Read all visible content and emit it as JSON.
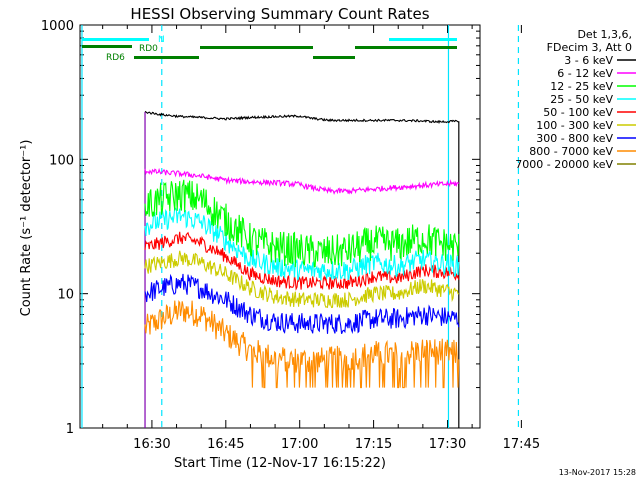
{
  "chart_data": {
    "type": "line",
    "title": "HESSI Observing Summary Count Rates",
    "xlabel": "Start Time (12-Nov-17 16:15:22)",
    "ylabel": "Count Rate (s⁻¹ detector⁻¹)",
    "yscale": "log",
    "ylim": [
      1,
      1000
    ],
    "xlim_min": [
      15.4,
      96.6
    ],
    "x_tick_labels": [
      "16:30",
      "16:45",
      "17:00",
      "17:15",
      "17:30",
      "17:45"
    ],
    "x_tick_min": [
      30,
      45,
      60,
      75,
      90,
      105
    ],
    "y_tick_labels": [
      "1",
      "10",
      "100",
      "1000"
    ],
    "y_tick_values": [
      1,
      10,
      100,
      1000
    ],
    "grid": false,
    "legend_position": "right",
    "legend_header": [
      "Det 1,3,6,",
      "FDecim 3, Att 0"
    ],
    "data_start_min": 28.6,
    "data_end_min": 92.3,
    "series": [
      {
        "name": "3 - 6 keV",
        "color": "#000000",
        "x": [
          28.6,
          32,
          36,
          40,
          45,
          50,
          55,
          60,
          62,
          66,
          70,
          75,
          80,
          85,
          88,
          92.3
        ],
        "values": [
          225,
          215,
          208,
          205,
          200,
          205,
          208,
          210,
          203,
          195,
          195,
          195,
          195,
          193,
          190,
          192
        ]
      },
      {
        "name": "6 - 12 keV",
        "color": "#ff00ff",
        "x": [
          28.6,
          32,
          36,
          40,
          45,
          50,
          55,
          60,
          62,
          66,
          70,
          75,
          80,
          85,
          88,
          92.3
        ],
        "values": [
          82,
          80,
          78,
          75,
          70,
          68,
          67,
          65,
          62,
          58,
          58,
          60,
          62,
          64,
          65,
          66
        ]
      },
      {
        "name": "12 - 25 keV",
        "color": "#00ff00",
        "x": [
          28.6,
          32,
          36,
          40,
          45,
          50,
          55,
          60,
          65,
          70,
          75,
          80,
          85,
          88,
          92.3
        ],
        "values": [
          45,
          50,
          55,
          50,
          35,
          25,
          22,
          21,
          20,
          21,
          24,
          23,
          26,
          24,
          22
        ]
      },
      {
        "name": "25 - 50 keV",
        "color": "#00ffff",
        "x": [
          28.6,
          32,
          36,
          40,
          45,
          50,
          55,
          60,
          65,
          70,
          75,
          80,
          85,
          92.3
        ],
        "values": [
          32,
          35,
          38,
          34,
          25,
          18,
          16,
          15,
          15,
          15,
          17,
          16,
          18,
          16
        ]
      },
      {
        "name": "50 - 100 keV",
        "color": "#ff0000",
        "x": [
          28.6,
          32,
          36,
          40,
          45,
          50,
          55,
          60,
          65,
          70,
          75,
          80,
          85,
          92.3
        ],
        "values": [
          22,
          24,
          26,
          24,
          19,
          14,
          12.5,
          12,
          12,
          12,
          13.5,
          13,
          15,
          14
        ]
      },
      {
        "name": "100 - 300 keV",
        "color": "#cccc00",
        "x": [
          28.6,
          32,
          36,
          40,
          45,
          50,
          55,
          60,
          65,
          70,
          75,
          80,
          85,
          92.3
        ],
        "values": [
          16,
          17,
          18.5,
          17,
          14,
          11,
          9.5,
          9,
          9,
          9,
          10,
          10,
          11.5,
          10
        ]
      },
      {
        "name": "300 - 800 keV",
        "color": "#0000ff",
        "x": [
          28.6,
          32,
          36,
          40,
          45,
          50,
          55,
          60,
          65,
          70,
          75,
          80,
          85,
          92.3
        ],
        "values": [
          10,
          11,
          12,
          11,
          9,
          7,
          6.2,
          6,
          6,
          6,
          6.5,
          6.5,
          7,
          6.5
        ]
      },
      {
        "name": "800 - 7000 keV",
        "color": "#ff8c00",
        "x": [
          28.6,
          32,
          36,
          40,
          45,
          50,
          55,
          60,
          65,
          70,
          75,
          80,
          85,
          92.3
        ],
        "values": [
          5.5,
          6.5,
          7.5,
          7,
          5,
          3.8,
          3.3,
          3.2,
          3.2,
          3.3,
          3.6,
          3.5,
          3.8,
          3.6
        ]
      }
    ],
    "extra_legend": [
      {
        "name": "7000 - 20000 keV",
        "color": "#808000"
      }
    ],
    "annotation_labels": [
      "N",
      "RD0",
      "RD6"
    ],
    "annotation_colors": {
      "N": "#00ffff",
      "RD0": "#008000",
      "RD6": "#008000"
    },
    "vertical_markers": {
      "solid_cyan": [
        15.8,
        90.2
      ],
      "dashed_cyan": [
        32.0,
        104.4
      ],
      "solid_purple": [
        28.6,
        92.3
      ]
    }
  },
  "footer_timestamp": "13-Nov-2017 15:28"
}
